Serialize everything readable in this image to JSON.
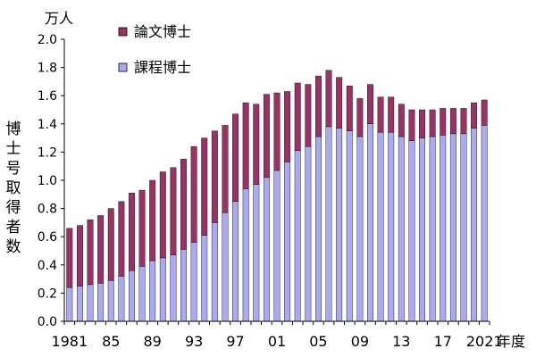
{
  "chart_data": {
    "type": "bar",
    "stacked": true,
    "unit_label": "万人",
    "ylabel": "博士号取得者数",
    "xlabel_suffix": "年度",
    "ylim": [
      0,
      2.0
    ],
    "yticks": [
      "0.0",
      "0.2",
      "0.4",
      "0.6",
      "0.8",
      "1.0",
      "1.2",
      "1.4",
      "1.6",
      "1.8",
      "2.0"
    ],
    "x": [
      1981,
      1982,
      1983,
      1984,
      1985,
      1986,
      1987,
      1988,
      1989,
      1990,
      1991,
      1992,
      1993,
      1994,
      1995,
      1996,
      1997,
      1998,
      1999,
      2000,
      2001,
      2002,
      2003,
      2004,
      2005,
      2006,
      2007,
      2008,
      2009,
      2010,
      2011,
      2012,
      2013,
      2014,
      2015,
      2016,
      2017,
      2018,
      2019,
      2020,
      2021
    ],
    "xticks": [
      "1981",
      "85",
      "89",
      "93",
      "97",
      "01",
      "05",
      "09",
      "13",
      "17",
      "2021"
    ],
    "xtick_years": [
      1981,
      1985,
      1989,
      1993,
      1997,
      2001,
      2005,
      2009,
      2013,
      2017,
      2021
    ],
    "legend_position": "top-left",
    "series": [
      {
        "name": "課程博士",
        "color": "#aaaaf0",
        "values": [
          0.24,
          0.25,
          0.26,
          0.27,
          0.29,
          0.32,
          0.36,
          0.39,
          0.43,
          0.45,
          0.47,
          0.51,
          0.56,
          0.61,
          0.7,
          0.77,
          0.85,
          0.94,
          0.97,
          1.02,
          1.07,
          1.13,
          1.21,
          1.24,
          1.31,
          1.38,
          1.37,
          1.35,
          1.31,
          1.4,
          1.34,
          1.34,
          1.31,
          1.28,
          1.3,
          1.31,
          1.32,
          1.33,
          1.33,
          1.37,
          1.39
        ]
      },
      {
        "name": "論文博士",
        "color": "#993366",
        "values": [
          0.42,
          0.43,
          0.46,
          0.48,
          0.51,
          0.53,
          0.55,
          0.54,
          0.57,
          0.61,
          0.62,
          0.64,
          0.68,
          0.69,
          0.65,
          0.62,
          0.62,
          0.61,
          0.57,
          0.59,
          0.55,
          0.5,
          0.48,
          0.44,
          0.43,
          0.4,
          0.36,
          0.32,
          0.27,
          0.28,
          0.25,
          0.25,
          0.23,
          0.22,
          0.2,
          0.19,
          0.19,
          0.18,
          0.18,
          0.18,
          0.18
        ]
      }
    ]
  }
}
